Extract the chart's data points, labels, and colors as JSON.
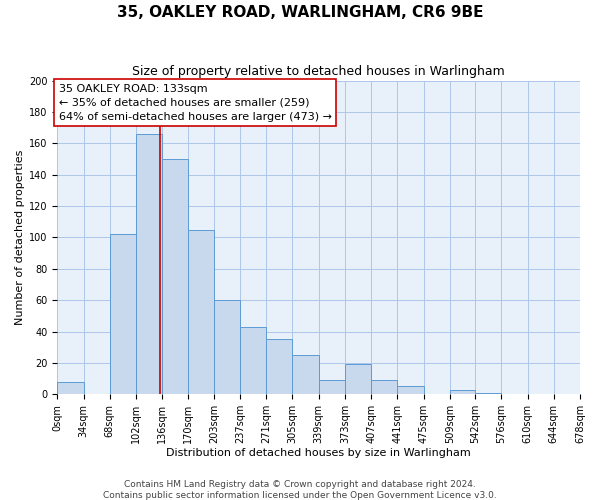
{
  "title": "35, OAKLEY ROAD, WARLINGHAM, CR6 9BE",
  "subtitle": "Size of property relative to detached houses in Warlingham",
  "xlabel": "Distribution of detached houses by size in Warlingham",
  "ylabel": "Number of detached properties",
  "bin_edges": [
    0,
    34,
    68,
    102,
    136,
    170,
    203,
    237,
    271,
    305,
    339,
    373,
    407,
    441,
    475,
    509,
    542,
    576,
    610,
    644,
    678
  ],
  "bin_counts": [
    8,
    0,
    102,
    166,
    150,
    105,
    60,
    43,
    35,
    25,
    9,
    19,
    9,
    5,
    0,
    3,
    1,
    0,
    0,
    0
  ],
  "bar_facecolor": "#c8d9ed",
  "bar_edgecolor": "#5b9bd5",
  "property_line_x": 133,
  "property_line_color": "#cc0000",
  "annotation_title": "35 OAKLEY ROAD: 133sqm",
  "annotation_line1": "← 35% of detached houses are smaller (259)",
  "annotation_line2": "64% of semi-detached houses are larger (473) →",
  "annotation_box_facecolor": "#ffffff",
  "annotation_box_edgecolor": "#cc0000",
  "ylim": [
    0,
    200
  ],
  "yticks": [
    0,
    20,
    40,
    60,
    80,
    100,
    120,
    140,
    160,
    180,
    200
  ],
  "tick_labels": [
    "0sqm",
    "34sqm",
    "68sqm",
    "102sqm",
    "136sqm",
    "170sqm",
    "203sqm",
    "237sqm",
    "271sqm",
    "305sqm",
    "339sqm",
    "373sqm",
    "407sqm",
    "441sqm",
    "475sqm",
    "509sqm",
    "542sqm",
    "576sqm",
    "610sqm",
    "644sqm",
    "678sqm"
  ],
  "footer1": "Contains HM Land Registry data © Crown copyright and database right 2024.",
  "footer2": "Contains public sector information licensed under the Open Government Licence v3.0.",
  "background_color": "#e8f0fa",
  "grid_color": "#aec6e8",
  "title_fontsize": 11,
  "subtitle_fontsize": 9,
  "axis_label_fontsize": 8,
  "tick_fontsize": 7,
  "annotation_fontsize": 8,
  "footer_fontsize": 6.5
}
